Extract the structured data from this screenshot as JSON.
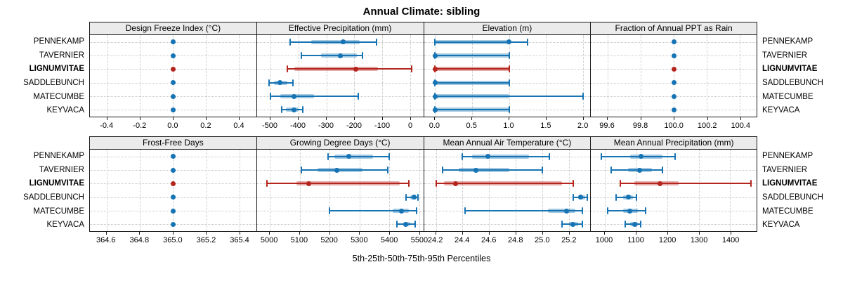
{
  "title": "Annual Climate: sibling",
  "axis_caption": "5th-25th-50th-75th-95th Percentiles",
  "sites": [
    "PENNEKAMP",
    "TAVERNIER",
    "LIGNUMVITAE",
    "SADDLEBUNCH",
    "MATECUMBE",
    "KEYVACA"
  ],
  "highlighted_site": "LIGNUMVITAE",
  "colors": {
    "normal": "#1673B4",
    "highlight": "#B5251D",
    "strip_bg": "#EBEBEB",
    "gridline": "#C6C6C6",
    "border": "#1A1A1A"
  },
  "chart_data": {
    "type": "dotplot-percentiles",
    "percentile_labels": [
      "5th",
      "25th",
      "50th",
      "75th",
      "95th"
    ],
    "legend_position": "none",
    "grid": "dotted",
    "panels": [
      {
        "title": "Design Freeze Index (°C)",
        "xlim": [
          -0.505,
          0.505
        ],
        "ticks": [
          -0.4,
          -0.2,
          0,
          0.2,
          0.4
        ],
        "tick_labels": [
          "-0.4",
          "-0.2",
          "0.0",
          "0.2",
          "0.4"
        ],
        "series": [
          {
            "name": "PENNEKAMP",
            "values": [
              0,
              0,
              0,
              0,
              0
            ]
          },
          {
            "name": "TAVERNIER",
            "values": [
              0,
              0,
              0,
              0,
              0
            ]
          },
          {
            "name": "LIGNUMVITAE",
            "values": [
              0,
              0,
              0,
              0,
              0
            ]
          },
          {
            "name": "SADDLEBUNCH",
            "values": [
              0,
              0,
              0,
              0,
              0
            ]
          },
          {
            "name": "MATECUMBE",
            "values": [
              0,
              0,
              0,
              0,
              0
            ]
          },
          {
            "name": "KEYVACA",
            "values": [
              0,
              0,
              0,
              0,
              0
            ]
          }
        ]
      },
      {
        "title": "Effective Precipitation (mm)",
        "xlim": [
          -548,
          46
        ],
        "ticks": [
          -500,
          -400,
          -300,
          -200,
          -100,
          0
        ],
        "tick_labels": [
          "-500",
          "-400",
          "-300",
          "-200",
          "-100",
          "0"
        ],
        "series": [
          {
            "name": "PENNEKAMP",
            "values": [
              -430,
              -355,
              -240,
              -180,
              -120
            ]
          },
          {
            "name": "TAVERNIER",
            "values": [
              -390,
              -320,
              -250,
              -190,
              -172
            ]
          },
          {
            "name": "LIGNUMVITAE",
            "values": [
              -440,
              -415,
              -195,
              -115,
              5
            ]
          },
          {
            "name": "SADDLEBUNCH",
            "values": [
              -505,
              -488,
              -465,
              -440,
              -420
            ]
          },
          {
            "name": "MATECUMBE",
            "values": [
              -500,
              -465,
              -415,
              -345,
              -185
            ]
          },
          {
            "name": "KEYVACA",
            "values": [
              -460,
              -445,
              -415,
              -400,
              -385
            ]
          }
        ]
      },
      {
        "title": "Elevation (m)",
        "xlim": [
          -0.15,
          2.1
        ],
        "ticks": [
          0,
          0.5,
          1,
          1.5,
          2
        ],
        "tick_labels": [
          "0.0",
          "0.5",
          "1.0",
          "1.5",
          "2.0"
        ],
        "series": [
          {
            "name": "PENNEKAMP",
            "values": [
              0,
              0,
              1,
              1,
              1.25
            ]
          },
          {
            "name": "TAVERNIER",
            "values": [
              0,
              0,
              0,
              1,
              1
            ]
          },
          {
            "name": "LIGNUMVITAE",
            "values": [
              0,
              0,
              0,
              1,
              1
            ]
          },
          {
            "name": "SADDLEBUNCH",
            "values": [
              0,
              0,
              0,
              1,
              1
            ]
          },
          {
            "name": "MATECUMBE",
            "values": [
              0,
              0,
              0,
              1,
              2
            ]
          },
          {
            "name": "KEYVACA",
            "values": [
              0,
              0,
              0,
              1,
              1
            ]
          }
        ]
      },
      {
        "title": "Fraction of Annual PPT as Rain",
        "xlim": [
          99.5,
          100.5
        ],
        "ticks": [
          99.6,
          99.8,
          100,
          100.2,
          100.4
        ],
        "tick_labels": [
          "99.6",
          "99.8",
          "100.0",
          "100.2",
          "100.4"
        ],
        "series": [
          {
            "name": "PENNEKAMP",
            "values": [
              100,
              100,
              100,
              100,
              100
            ]
          },
          {
            "name": "TAVERNIER",
            "values": [
              100,
              100,
              100,
              100,
              100
            ]
          },
          {
            "name": "LIGNUMVITAE",
            "values": [
              100,
              100,
              100,
              100,
              100
            ]
          },
          {
            "name": "SADDLEBUNCH",
            "values": [
              100,
              100,
              100,
              100,
              100
            ]
          },
          {
            "name": "MATECUMBE",
            "values": [
              100,
              100,
              100,
              100,
              100
            ]
          },
          {
            "name": "KEYVACA",
            "values": [
              100,
              100,
              100,
              100,
              100
            ]
          }
        ]
      },
      {
        "title": "Frost-Free Days",
        "xlim": [
          364.5,
          365.5
        ],
        "ticks": [
          364.6,
          364.8,
          365,
          365.2,
          365.4
        ],
        "tick_labels": [
          "364.6",
          "364.8",
          "365.0",
          "365.2",
          "365.4"
        ],
        "series": [
          {
            "name": "PENNEKAMP",
            "values": [
              365,
              365,
              365,
              365,
              365
            ]
          },
          {
            "name": "TAVERNIER",
            "values": [
              365,
              365,
              365,
              365,
              365
            ]
          },
          {
            "name": "LIGNUMVITAE",
            "values": [
              365,
              365,
              365,
              365,
              365
            ]
          },
          {
            "name": "SADDLEBUNCH",
            "values": [
              365,
              365,
              365,
              365,
              365
            ]
          },
          {
            "name": "MATECUMBE",
            "values": [
              365,
              365,
              365,
              365,
              365
            ]
          },
          {
            "name": "KEYVACA",
            "values": [
              365,
              365,
              365,
              365,
              365
            ]
          }
        ]
      },
      {
        "title": "Growing Degree Days (°C)",
        "xlim": [
          4957,
          5513
        ],
        "ticks": [
          5000,
          5100,
          5200,
          5300,
          5400,
          5500
        ],
        "tick_labels": [
          "5000",
          "5100",
          "5200",
          "5300",
          "5400",
          "5500"
        ],
        "series": [
          {
            "name": "PENNEKAMP",
            "values": [
              5195,
              5215,
              5265,
              5345,
              5400
            ]
          },
          {
            "name": "TAVERNIER",
            "values": [
              5105,
              5160,
              5225,
              5310,
              5395
            ]
          },
          {
            "name": "LIGNUMVITAE",
            "values": [
              4990,
              5090,
              5130,
              5435,
              5465
            ]
          },
          {
            "name": "SADDLEBUNCH",
            "values": [
              5455,
              5470,
              5482,
              5490,
              5495
            ]
          },
          {
            "name": "MATECUMBE",
            "values": [
              5200,
              5410,
              5440,
              5465,
              5490
            ]
          },
          {
            "name": "KEYVACA",
            "values": [
              5425,
              5445,
              5455,
              5470,
              5485
            ]
          }
        ]
      },
      {
        "title": "Mean Annual Air Temperature (°C)",
        "xlim": [
          24.11,
          25.36
        ],
        "ticks": [
          24.2,
          24.4,
          24.6,
          24.8,
          25,
          25.2
        ],
        "tick_labels": [
          "24.2",
          "24.4",
          "24.6",
          "24.8",
          "25.0",
          "25.2"
        ],
        "series": [
          {
            "name": "PENNEKAMP",
            "values": [
              24.4,
              24.47,
              24.59,
              24.9,
              25.05
            ]
          },
          {
            "name": "TAVERNIER",
            "values": [
              24.25,
              24.37,
              24.5,
              24.75,
              25.0
            ]
          },
          {
            "name": "LIGNUMVITAE",
            "values": [
              24.2,
              24.26,
              24.35,
              25.15,
              25.23
            ]
          },
          {
            "name": "SADDLEBUNCH",
            "values": [
              25.23,
              25.27,
              25.29,
              25.32,
              25.34
            ]
          },
          {
            "name": "MATECUMBE",
            "values": [
              24.42,
              25.04,
              25.18,
              25.25,
              25.3
            ]
          },
          {
            "name": "KEYVACA",
            "values": [
              25.15,
              25.2,
              25.23,
              25.27,
              25.3
            ]
          }
        ]
      },
      {
        "title": "Mean Annual Precipitation (mm)",
        "xlim": [
          956,
          1484
        ],
        "ticks": [
          1000,
          1100,
          1200,
          1300,
          1400
        ],
        "tick_labels": [
          "1000",
          "1100",
          "1200",
          "1300",
          "1400"
        ],
        "series": [
          {
            "name": "PENNEKAMP",
            "values": [
              990,
              1080,
              1115,
              1185,
              1225
            ]
          },
          {
            "name": "TAVERNIER",
            "values": [
              1020,
              1075,
              1110,
              1150,
              1185
            ]
          },
          {
            "name": "LIGNUMVITAE",
            "values": [
              1050,
              1095,
              1175,
              1235,
              1465
            ]
          },
          {
            "name": "SADDLEBUNCH",
            "values": [
              1035,
              1058,
              1075,
              1090,
              1100
            ]
          },
          {
            "name": "MATECUMBE",
            "values": [
              1010,
              1058,
              1080,
              1105,
              1130
            ]
          },
          {
            "name": "KEYVACA",
            "values": [
              1065,
              1080,
              1095,
              1105,
              1115
            ]
          }
        ]
      }
    ]
  }
}
